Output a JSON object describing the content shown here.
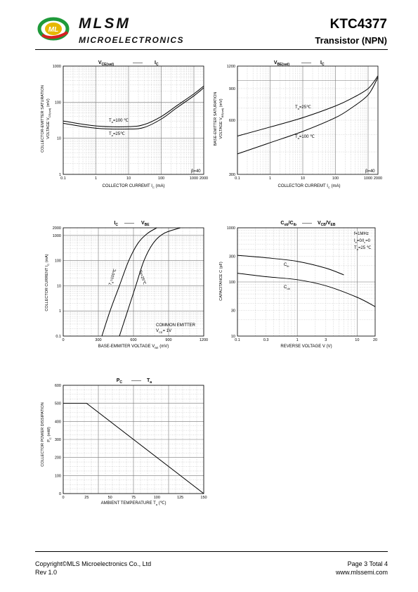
{
  "header": {
    "brand": "MLSM",
    "brand_sub": "MICROELECTRONICS",
    "logo_letters": "ML",
    "part_number": "KTC4377",
    "part_type": "Transistor  (NPN)"
  },
  "footer": {
    "copyright": "Copyright©MLS Microelectronics Co., Ltd",
    "revision": "Rev 1.0",
    "page": "Page 3 Total 4",
    "website": "www.mlssemi.com"
  },
  "charts": {
    "c1": {
      "title_a": "V",
      "title_a_sub": "CE(sat)",
      "title_sep": "——",
      "title_b": "I",
      "title_b_sub": "C",
      "ylabel": "COLLECTOR-EMITTER SATURATION",
      "ylabel2": "VOLTAGE   V",
      "ylabel2_sub": "CE(sat)",
      "ylabel2_unit": "(mV)",
      "xlabel": "COLLECTOR CURREMT   I",
      "xlabel_sub": "C",
      "xlabel_unit": "(mA)",
      "yticks": [
        "1000",
        "100",
        "10",
        "1"
      ],
      "xticks": [
        "0.1",
        "1",
        "10",
        "100",
        "1000",
        "2000"
      ],
      "label_hot": "T",
      "label_hot_sub": "a",
      "label_hot_val": "=100 ℃",
      "label_cold": "T",
      "label_cold_sub": "a",
      "label_cold_val": "=25℃",
      "note": "β=40"
    },
    "c2": {
      "title_a": "V",
      "title_a_sub": "BE(sat)",
      "title_sep": "——",
      "title_b": "I",
      "title_b_sub": "C",
      "ylabel": "BASE-EMITTER SATURATION",
      "ylabel2": "VOLTAGE   V",
      "ylabel2_sub": "BE(sat)",
      "ylabel2_unit": "(mV)",
      "xlabel": "COLLECTOR CURREMT   I",
      "xlabel_sub": "C",
      "xlabel_unit": "(mA)",
      "yticks": [
        "1200",
        "900",
        "600",
        "300"
      ],
      "xticks": [
        "0.1",
        "1",
        "10",
        "100",
        "1000",
        "2000"
      ],
      "label_cold": "T",
      "label_cold_sub": "a",
      "label_cold_val": "=25℃",
      "label_hot": "T",
      "label_hot_sub": "a",
      "label_hot_val": "=100 ℃",
      "note": "β=40"
    },
    "c3": {
      "title_a": "I",
      "title_a_sub": "C",
      "title_sep": "——",
      "title_b": "V",
      "title_b_sub": "BE",
      "ylabel": "COLLECTOR CURRENT   I",
      "ylabel_sub": "C",
      "ylabel_unit": "(mA)",
      "xlabel": "BASE-EMMITER  VOLTAGE   V",
      "xlabel_sub": "BE",
      "xlabel_unit": "(mV)",
      "yticks": [
        "2000",
        "1000",
        "100",
        "10",
        "1",
        "0.1"
      ],
      "xticks": [
        "0",
        "300",
        "600",
        "900",
        "1200"
      ],
      "label_hot": "T",
      "label_hot_sub": "a",
      "label_hot_val": "=100℃",
      "label_cold": "Ta=25℃",
      "note1": "COMMON EMITTER",
      "note2": "V",
      "note2_sub": "CE",
      "note2_val": "= 1V"
    },
    "c4": {
      "title_a": "C",
      "title_a_sub": "ob",
      "title_mid": "/C",
      "title_mid_sub": "ib",
      "title_sep": "——",
      "title_b": "V",
      "title_b_sub": "CB",
      "title_c": "/V",
      "title_c_sub": "EB",
      "ylabel": "CAPACITANCE   C",
      "ylabel_unit": "(pF)",
      "xlabel": "REVERSE  VOLTAGE   V",
      "xlabel_unit": "(V)",
      "yticks": [
        "1000",
        "300",
        "100",
        "30",
        "10"
      ],
      "xticks": [
        "0.1",
        "0.3",
        "1",
        "3",
        "10",
        "20"
      ],
      "note1": "f=1MHz",
      "note2": "I",
      "note2_sub": "e",
      "note2_val": "=0/I",
      "note2_sub2": "c",
      "note2_val2": "=0",
      "note3": "T",
      "note3_sub": "a",
      "note3_val": "=25 ℃",
      "label_ib": "C",
      "label_ib_sub": "ib",
      "label_ob": "C",
      "label_ob_sub": "ob"
    },
    "c5": {
      "title_a": "P",
      "title_a_sub": "C",
      "title_sep": "——",
      "title_b": "T",
      "title_b_sub": "a",
      "ylabel": "COLLECTOR POWER DISSIPATION",
      "ylabel2": "P",
      "ylabel2_sub": "C",
      "ylabel2_unit": "(mW)",
      "xlabel": "AMBIENT TEMPERATURE   T",
      "xlabel_sub": "a",
      "xlabel_unit": "(℃)",
      "yticks": [
        "600",
        "500",
        "400",
        "300",
        "200",
        "100",
        "0"
      ],
      "xticks": [
        "0",
        "25",
        "50",
        "75",
        "100",
        "125",
        "150"
      ]
    }
  },
  "chart_data": [
    {
      "type": "line",
      "title": "VCE(sat) —— IC",
      "xlabel": "COLLECTOR CURREMT IC (mA)",
      "ylabel": "COLLECTOR-EMITTER SATURATION VOLTAGE VCE(sat) (mV)",
      "x_scale": "log",
      "y_scale": "log",
      "xlim": [
        0.1,
        2000
      ],
      "ylim": [
        1,
        1000
      ],
      "grid": true,
      "series": [
        {
          "name": "Ta=100 ℃",
          "x": [
            0.1,
            1,
            10,
            30,
            100,
            300,
            1000,
            2000
          ],
          "y": [
            30,
            22,
            21,
            24,
            40,
            80,
            170,
            280
          ]
        },
        {
          "name": "Ta=25℃",
          "x": [
            0.1,
            1,
            10,
            30,
            100,
            300,
            1000,
            2000
          ],
          "y": [
            26,
            19,
            18,
            20,
            34,
            70,
            150,
            250
          ]
        }
      ]
    },
    {
      "type": "line",
      "title": "VBE(sat) —— IC",
      "xlabel": "COLLECTOR CURREMT IC (mA)",
      "ylabel": "BASE-EMITTER SATURATION VOLTAGE VBE(sat) (mV)",
      "x_scale": "log",
      "y_scale": "log",
      "xlim": [
        0.1,
        2000
      ],
      "ylim": [
        300,
        1200
      ],
      "grid": true,
      "series": [
        {
          "name": "Ta=25℃",
          "x": [
            0.1,
            1,
            10,
            100,
            300,
            1000,
            2000
          ],
          "y": [
            490,
            550,
            620,
            720,
            790,
            900,
            1060
          ]
        },
        {
          "name": "Ta=100 ℃",
          "x": [
            0.1,
            1,
            10,
            100,
            300,
            1000,
            2000
          ],
          "y": [
            390,
            450,
            520,
            620,
            700,
            830,
            1040
          ]
        }
      ]
    },
    {
      "type": "line",
      "title": "IC —— VBE",
      "xlabel": "BASE-EMMITER VOLTAGE VBE (mV)",
      "ylabel": "COLLECTOR CURRENT IC (mA)",
      "x_scale": "linear",
      "y_scale": "log",
      "xlim": [
        0,
        1200
      ],
      "ylim": [
        0.1,
        2000
      ],
      "grid": true,
      "series": [
        {
          "name": "Ta=100℃",
          "x": [
            330,
            400,
            480,
            560,
            640,
            720,
            800
          ],
          "y": [
            0.1,
            1,
            10,
            100,
            500,
            1200,
            2000
          ]
        },
        {
          "name": "Ta=25℃",
          "x": [
            480,
            550,
            620,
            690,
            770,
            860,
            1000
          ],
          "y": [
            0.1,
            1,
            10,
            100,
            500,
            1200,
            2000
          ]
        }
      ]
    },
    {
      "type": "line",
      "title": "Cob/Cib —— VCB/VEB",
      "xlabel": "REVERSE VOLTAGE V (V)",
      "ylabel": "CAPACITANCE C (pF)",
      "x_scale": "log",
      "y_scale": "log",
      "xlim": [
        0.1,
        20
      ],
      "ylim": [
        10,
        1000
      ],
      "grid": true,
      "series": [
        {
          "name": "Cib",
          "x": [
            0.1,
            0.3,
            1,
            3,
            6
          ],
          "y": [
            310,
            280,
            240,
            180,
            135
          ]
        },
        {
          "name": "Cob",
          "x": [
            0.1,
            0.3,
            1,
            3,
            10,
            20
          ],
          "y": [
            145,
            125,
            110,
            85,
            52,
            35
          ]
        }
      ]
    },
    {
      "type": "line",
      "title": "PC —— Ta",
      "xlabel": "AMBIENT TEMPERATURE Ta (℃)",
      "ylabel": "COLLECTOR POWER DISSIPATION PC (mW)",
      "x_scale": "linear",
      "y_scale": "linear",
      "xlim": [
        0,
        150
      ],
      "ylim": [
        0,
        600
      ],
      "grid": true,
      "series": [
        {
          "name": "PC",
          "x": [
            0,
            25,
            150
          ],
          "y": [
            500,
            500,
            0
          ]
        }
      ]
    }
  ]
}
